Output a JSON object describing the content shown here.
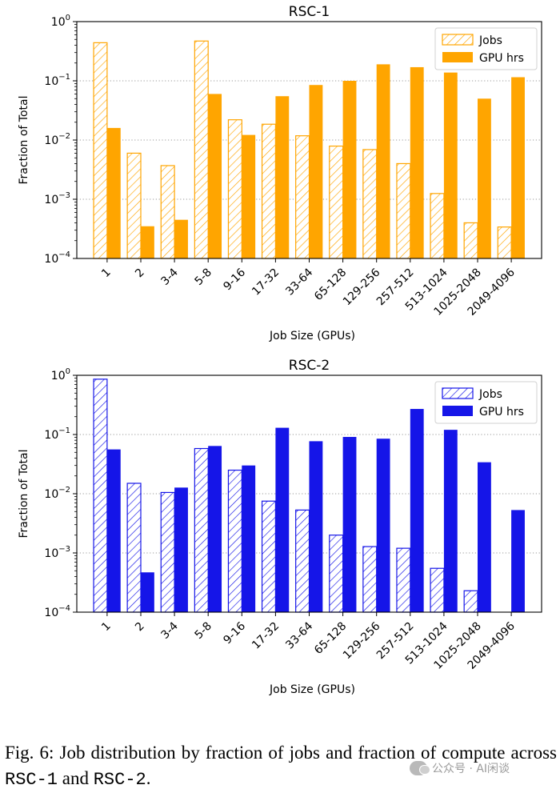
{
  "chart_data": [
    {
      "type": "bar",
      "title": "RSC-1",
      "xlabel": "Job Size (GPUs)",
      "ylabel": "Fraction of Total",
      "yscale": "log",
      "ylim": [
        0.0001,
        1
      ],
      "yticks": [
        {
          "value": 1,
          "base": "10",
          "exp": "0"
        },
        {
          "value": 0.1,
          "base": "10",
          "exp": "−1"
        },
        {
          "value": 0.01,
          "base": "10",
          "exp": "−2"
        },
        {
          "value": 0.001,
          "base": "10",
          "exp": "−3"
        },
        {
          "value": 0.0001,
          "base": "10",
          "exp": "−4"
        }
      ],
      "grid": "horizontal dotted",
      "legend_position": "top-right",
      "categories": [
        "1",
        "2",
        "3-4",
        "5-8",
        "9-16",
        "17-32",
        "33-64",
        "65-128",
        "129-256",
        "257-512",
        "513-1024",
        "1025-2048",
        "2049-4096"
      ],
      "series": [
        {
          "name": "Jobs",
          "style": "hatched",
          "color": "#ffa500",
          "values": [
            0.44,
            0.006,
            0.0037,
            0.47,
            0.022,
            0.0185,
            0.0118,
            0.0079,
            0.0069,
            0.004,
            0.00125,
            0.0004,
            0.00034
          ]
        },
        {
          "name": "GPU hrs",
          "style": "solid",
          "color": "#ffa500",
          "values": [
            0.016,
            0.00035,
            0.00045,
            0.06,
            0.0122,
            0.055,
            0.085,
            0.1,
            0.19,
            0.17,
            0.138,
            0.05,
            0.115
          ]
        }
      ]
    },
    {
      "type": "bar",
      "title": "RSC-2",
      "xlabel": "Job Size (GPUs)",
      "ylabel": "Fraction of Total",
      "yscale": "log",
      "ylim": [
        0.0001,
        1
      ],
      "yticks": [
        {
          "value": 1,
          "base": "10",
          "exp": "0"
        },
        {
          "value": 0.1,
          "base": "10",
          "exp": "−1"
        },
        {
          "value": 0.01,
          "base": "10",
          "exp": "−2"
        },
        {
          "value": 0.001,
          "base": "10",
          "exp": "−3"
        },
        {
          "value": 0.0001,
          "base": "10",
          "exp": "−4"
        }
      ],
      "grid": "horizontal dotted",
      "legend_position": "top-right",
      "categories": [
        "1",
        "2",
        "3-4",
        "5-8",
        "9-16",
        "17-32",
        "33-64",
        "65-128",
        "129-256",
        "257-512",
        "513-1024",
        "1025-2048",
        "2049-4096"
      ],
      "series": [
        {
          "name": "Jobs",
          "style": "hatched",
          "color": "#1515e8",
          "values": [
            0.86,
            0.015,
            0.0105,
            0.058,
            0.025,
            0.0075,
            0.0053,
            0.002,
            0.00128,
            0.0012,
            0.00055,
            0.00023,
            null
          ]
        },
        {
          "name": "GPU hrs",
          "style": "solid",
          "color": "#1515e8",
          "values": [
            0.056,
            0.00047,
            0.0127,
            0.064,
            0.03,
            0.13,
            0.077,
            0.091,
            0.085,
            0.27,
            0.12,
            0.034,
            0.0053
          ]
        }
      ]
    }
  ],
  "caption": {
    "lead": "Fig. 6: Job distribution by fraction of jobs and fraction of compute across ",
    "rsc1": "RSC-1",
    "mid": " and ",
    "rsc2": "RSC-2",
    "end": "."
  },
  "watermark": "公众号 · AI闲谈"
}
